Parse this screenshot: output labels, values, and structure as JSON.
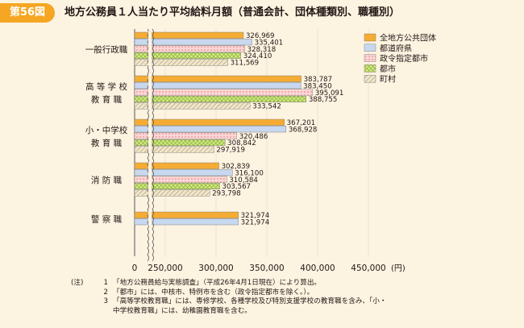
{
  "figure": {
    "badge": "第56図",
    "title": "地方公務員１人当たり平均給料月額（普通会計、団体種類別、職種別）"
  },
  "chart_data": {
    "type": "bar",
    "orientation": "horizontal",
    "categories": [
      [
        "一般行政職"
      ],
      [
        "高 等 学 校",
        "教 育 職"
      ],
      [
        "小・中学校",
        "教 育 職"
      ],
      [
        "消 防 職"
      ],
      [
        "警 察 職"
      ]
    ],
    "series": [
      {
        "name": "全地方公共団体",
        "color": "#f5ac34",
        "pattern": "solid",
        "values": [
          326969,
          383787,
          367201,
          302839,
          321974
        ]
      },
      {
        "name": "都道府県",
        "color": "#c7d8ef",
        "pattern": "solid",
        "values": [
          335401,
          383450,
          368928,
          316100,
          321974
        ]
      },
      {
        "name": "政令指定都市",
        "color": "#f6b9b9",
        "pattern": "dots",
        "values": [
          328318,
          395091,
          320486,
          310584,
          null
        ]
      },
      {
        "name": "都市",
        "color": "#c8df6e",
        "pattern": "cross",
        "values": [
          324410,
          388755,
          308842,
          303567,
          null
        ]
      },
      {
        "name": "町村",
        "color": "#c9b98d",
        "pattern": "hatch",
        "values": [
          311569,
          333542,
          297919,
          293798,
          null
        ]
      }
    ],
    "value_labels": [
      [
        "326,969",
        "335,401",
        "328,318",
        "324,410",
        "311,569"
      ],
      [
        "383,787",
        "383,450",
        "395,091",
        "388,755",
        "333,542"
      ],
      [
        "367,201",
        "368,928",
        "320,486",
        "308,842",
        "297,919"
      ],
      [
        "302,839",
        "316,100",
        "310,584",
        "303,567",
        "293,798"
      ],
      [
        "321,974",
        "321,974"
      ]
    ],
    "x_axis": {
      "broken": true,
      "ticks": [
        0,
        250000,
        300000,
        350000,
        400000,
        450000
      ],
      "tick_labels": [
        "0",
        "250,000",
        "300,000",
        "350,000",
        "400,000",
        "450,000"
      ],
      "unit": "(円)"
    },
    "legend_position": "top-right"
  },
  "notes": {
    "label": "(注)",
    "items": [
      {
        "num": "1",
        "text": "「地方公務員給与実態調査」（平成26年4月1日現在）により算出。"
      },
      {
        "num": "2",
        "text": "「都市」には、中核市、特例市を含む（政令指定都市を除く。）。"
      },
      {
        "num": "3",
        "text": "「高等学校教育職」には、専修学校、各種学校及び特別支援学校の教育職を含み、「小・",
        "cont": "中学校教育職」には、幼稚園教育職を含む。"
      }
    ]
  }
}
